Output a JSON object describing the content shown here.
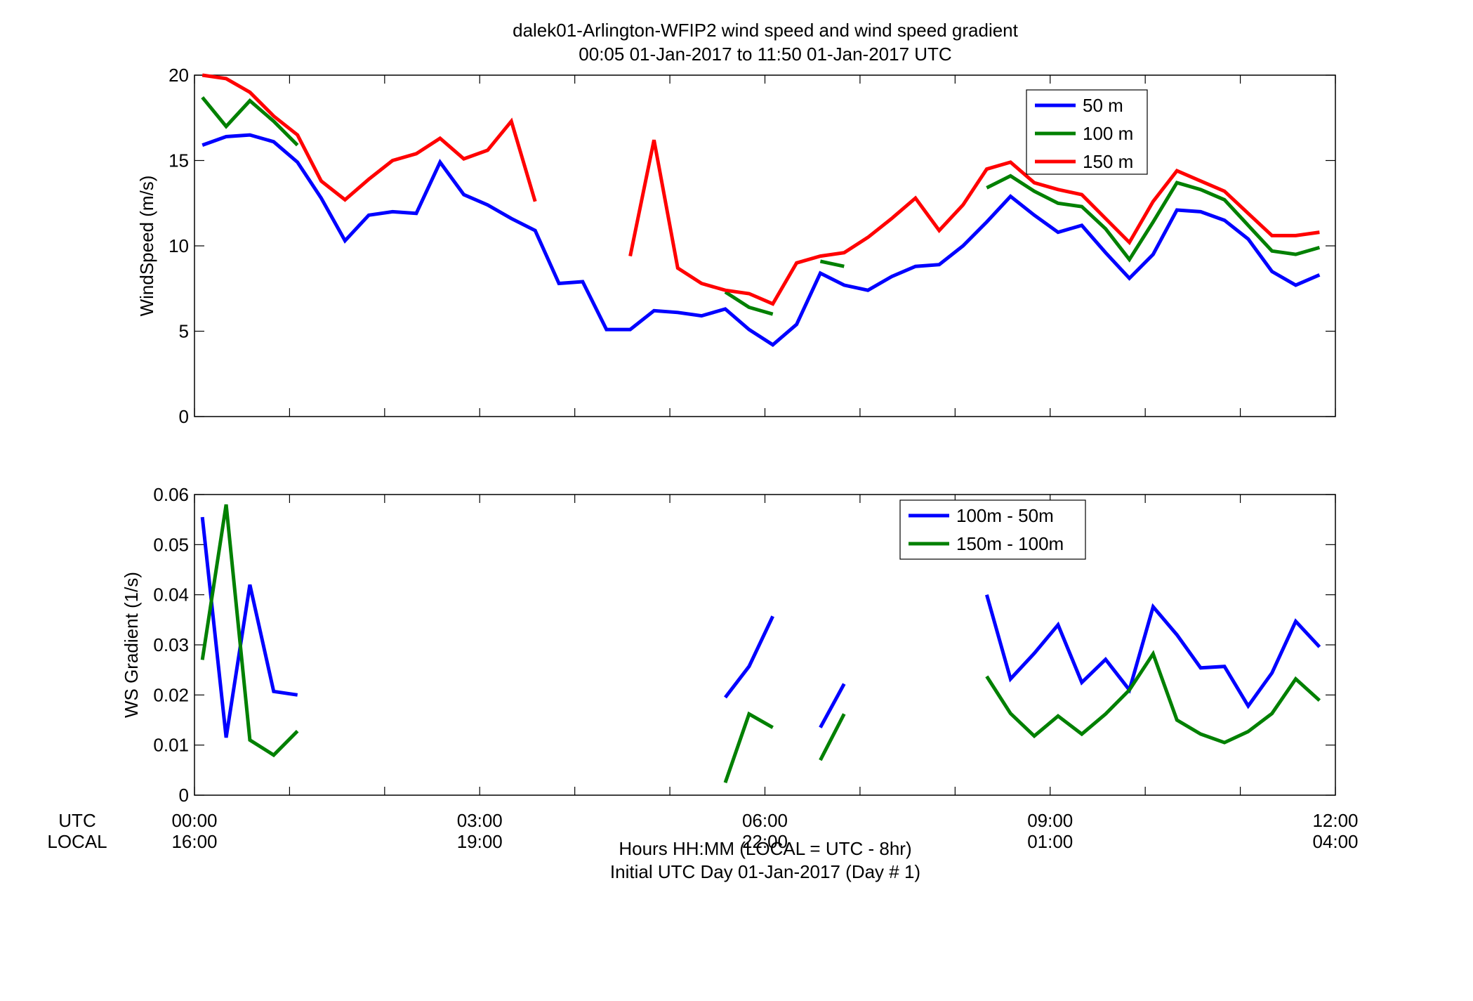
{
  "figure": {
    "title_line1": "dalek01-Arlington-WFIP2  wind speed and wind speed gradient",
    "title_line2": "00:05 01-Jan-2017 to 11:50 01-Jan-2017  UTC",
    "xlabel_line1": "Hours HH:MM  (LOCAL = UTC - 8hr)",
    "xlabel_line2": "Initial UTC Day 01-Jan-2017 (Day # 1)",
    "utc_row_label": "UTC",
    "local_row_label": "LOCAL",
    "x_ticks_utc": [
      "00:00",
      "03:00",
      "06:00",
      "09:00",
      "12:00"
    ],
    "x_ticks_local": [
      "16:00",
      "19:00",
      "22:00",
      "01:00",
      "04:00"
    ]
  },
  "chart_data": [
    {
      "type": "line",
      "ylabel": "WindSpeed (m/s)",
      "xlim": [
        0,
        12
      ],
      "ylim": [
        0,
        20
      ],
      "yticks": [
        0,
        5,
        10,
        15,
        20
      ],
      "x_unit": "hours UTC",
      "x": [
        0.083,
        0.333,
        0.583,
        0.833,
        1.083,
        1.333,
        1.583,
        1.833,
        2.083,
        2.333,
        2.583,
        2.833,
        3.083,
        3.333,
        3.583,
        3.833,
        4.083,
        4.333,
        4.583,
        4.833,
        5.083,
        5.333,
        5.583,
        5.833,
        6.083,
        6.333,
        6.583,
        6.833,
        7.083,
        7.333,
        7.583,
        7.833,
        8.083,
        8.333,
        8.583,
        8.833,
        9.083,
        9.333,
        9.583,
        9.833,
        10.083,
        10.333,
        10.583,
        10.833,
        11.083,
        11.333,
        11.583,
        11.833
      ],
      "series": [
        {
          "name": "50 m",
          "color": "#0000ff",
          "values": [
            15.9,
            16.4,
            16.5,
            16.1,
            14.9,
            12.8,
            10.3,
            11.8,
            12.0,
            11.9,
            14.9,
            13.0,
            12.4,
            11.6,
            10.9,
            7.8,
            7.9,
            5.1,
            5.1,
            6.2,
            6.1,
            5.9,
            6.3,
            5.1,
            4.2,
            5.4,
            8.4,
            7.7,
            7.4,
            8.2,
            8.8,
            8.9,
            10.0,
            11.4,
            12.9,
            11.8,
            10.8,
            11.2,
            9.6,
            8.1,
            9.5,
            12.1,
            12.0,
            11.5,
            10.4,
            8.5,
            7.7,
            8.3
          ]
        },
        {
          "name": "100 m",
          "color": "#008000",
          "values": [
            18.7,
            17.0,
            18.5,
            17.3,
            15.9,
            null,
            null,
            null,
            null,
            null,
            null,
            null,
            null,
            null,
            null,
            null,
            null,
            null,
            null,
            null,
            null,
            null,
            7.3,
            6.4,
            6.0,
            null,
            9.1,
            8.8,
            null,
            null,
            null,
            null,
            null,
            13.4,
            14.1,
            13.2,
            12.5,
            12.3,
            11.0,
            9.2,
            11.4,
            13.7,
            13.3,
            12.7,
            11.2,
            9.7,
            9.5,
            9.9
          ]
        },
        {
          "name": "150 m",
          "color": "#ff0000",
          "values": [
            20.0,
            19.8,
            19.0,
            17.6,
            16.5,
            13.8,
            12.7,
            13.9,
            15.0,
            15.4,
            16.3,
            15.1,
            15.6,
            17.3,
            12.6,
            null,
            null,
            null,
            9.4,
            16.2,
            8.7,
            7.8,
            7.4,
            7.2,
            6.6,
            9.0,
            9.4,
            9.6,
            10.5,
            11.6,
            12.8,
            10.9,
            12.4,
            14.5,
            14.9,
            13.7,
            13.3,
            13.0,
            11.6,
            10.2,
            12.6,
            14.4,
            13.8,
            13.2,
            11.9,
            10.6,
            10.6,
            10.8
          ]
        }
      ],
      "legend_location": "top-right"
    },
    {
      "type": "line",
      "ylabel": "WS Gradient (1/s)",
      "xlim": [
        0,
        12
      ],
      "ylim": [
        0,
        0.06
      ],
      "yticks": [
        0,
        0.01,
        0.02,
        0.03,
        0.04,
        0.05,
        0.06
      ],
      "x_unit": "hours UTC",
      "x": [
        0.083,
        0.333,
        0.583,
        0.833,
        1.083,
        1.333,
        1.583,
        1.833,
        2.083,
        2.333,
        2.583,
        2.833,
        3.083,
        3.333,
        3.583,
        3.833,
        4.083,
        4.333,
        4.583,
        4.833,
        5.083,
        5.333,
        5.583,
        5.833,
        6.083,
        6.333,
        6.583,
        6.833,
        7.083,
        7.333,
        7.583,
        7.833,
        8.083,
        8.333,
        8.583,
        8.833,
        9.083,
        9.333,
        9.583,
        9.833,
        10.083,
        10.333,
        10.583,
        10.833,
        11.083,
        11.333,
        11.583,
        11.833
      ],
      "series": [
        {
          "name": "100m - 50m",
          "color": "#0000ff",
          "values": [
            0.0555,
            0.0115,
            0.042,
            0.0207,
            0.02,
            null,
            null,
            null,
            null,
            null,
            null,
            null,
            null,
            null,
            null,
            null,
            null,
            null,
            null,
            null,
            null,
            null,
            0.0195,
            0.0257,
            0.0357,
            null,
            0.0135,
            0.0222,
            null,
            null,
            null,
            null,
            null,
            0.04,
            0.0232,
            0.0283,
            0.034,
            0.0225,
            0.0271,
            0.021,
            0.0376,
            0.032,
            0.0254,
            0.0257,
            0.0178,
            0.0244,
            0.0347,
            0.0296
          ]
        },
        {
          "name": "150m - 100m",
          "color": "#008000",
          "values": [
            0.027,
            0.058,
            0.011,
            0.008,
            0.0128,
            null,
            null,
            null,
            null,
            null,
            null,
            null,
            null,
            null,
            null,
            null,
            null,
            null,
            null,
            null,
            null,
            null,
            0.0025,
            0.0162,
            0.0135,
            null,
            0.007,
            0.0162,
            null,
            null,
            null,
            null,
            null,
            0.0237,
            0.0163,
            0.0118,
            0.0158,
            0.0122,
            0.0162,
            0.021,
            0.0282,
            0.015,
            0.0122,
            0.0105,
            0.0127,
            0.0163,
            0.0232,
            0.0189
          ]
        }
      ],
      "legend_location": "top-right"
    }
  ]
}
